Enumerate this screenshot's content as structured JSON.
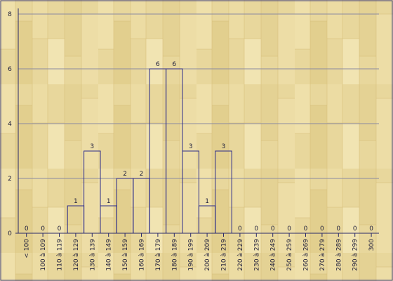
{
  "chart_data": {
    "type": "bar",
    "categories": [
      "< 100",
      "100 à 109",
      "110 à 119",
      "120 à 129",
      "130 à 139",
      "140 à 149",
      "150 à 159",
      "160 à 169",
      "170 à 179",
      "180 à 189",
      "190 à 199",
      "200 à 209",
      "210 à 219",
      "220 à 229",
      "230 à 239",
      "240 à 249",
      "250 à 259",
      "260 à 269",
      "270 à 279",
      "280 à 289",
      "290 à 299",
      "300"
    ],
    "values": [
      0,
      0,
      0,
      1,
      3,
      1,
      2,
      2,
      6,
      6,
      3,
      1,
      3,
      0,
      0,
      0,
      0,
      0,
      0,
      0,
      0,
      0
    ],
    "yticks": [
      "0",
      "2",
      "4",
      "6",
      "8"
    ],
    "ylim": [
      0,
      8
    ],
    "grid": true,
    "title": "",
    "xlabel": "",
    "ylabel": "",
    "colors": {
      "bar_stroke": "#2a2a8a",
      "axis": "#2a2a6a",
      "grid": "#8a8aa0",
      "frame": "#3a3a7a",
      "wood_base": "#e8d79c",
      "text": "#1b1b3a"
    }
  }
}
